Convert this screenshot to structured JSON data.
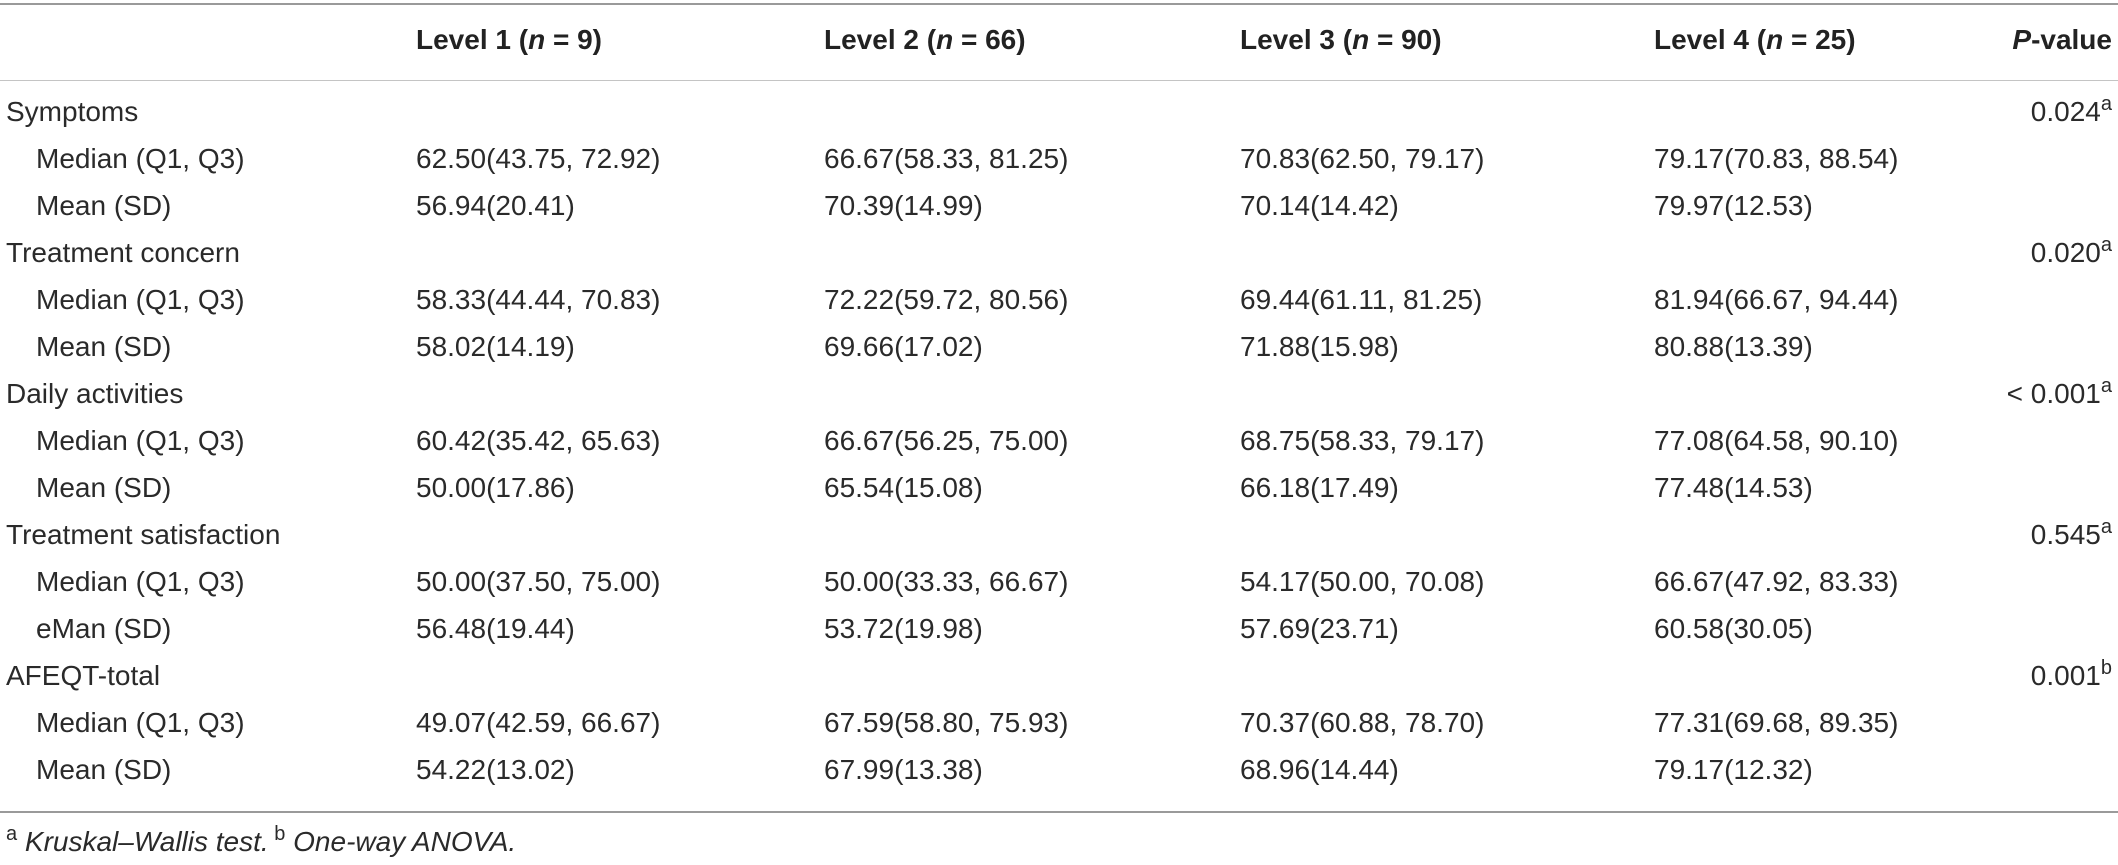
{
  "header": {
    "levels": [
      {
        "prefix": "Level 1 (",
        "n": "n",
        "eq": " = 9)"
      },
      {
        "prefix": "Level 2 (",
        "n": "n",
        "eq": " = 66)"
      },
      {
        "prefix": "Level 3 (",
        "n": "n",
        "eq": " = 90)"
      },
      {
        "prefix": "Level 4 (",
        "n": "n",
        "eq": " = 25)"
      }
    ],
    "pvalue_italic": "P",
    "pvalue_rest": "-value"
  },
  "groups": [
    {
      "name": "Symptoms",
      "p": "0.024",
      "p_sup": "a",
      "rows": [
        {
          "label": "Median (Q1, Q3)",
          "values": [
            "62.50(43.75, 72.92)",
            "66.67(58.33, 81.25)",
            "70.83(62.50, 79.17)",
            "79.17(70.83, 88.54)"
          ]
        },
        {
          "label": "Mean (SD)",
          "values": [
            "56.94(20.41)",
            "70.39(14.99)",
            "70.14(14.42)",
            "79.97(12.53)"
          ]
        }
      ]
    },
    {
      "name": "Treatment concern",
      "p": "0.020",
      "p_sup": "a",
      "rows": [
        {
          "label": "Median (Q1, Q3)",
          "values": [
            "58.33(44.44, 70.83)",
            "72.22(59.72, 80.56)",
            "69.44(61.11, 81.25)",
            "81.94(66.67, 94.44)"
          ]
        },
        {
          "label": "Mean (SD)",
          "values": [
            "58.02(14.19)",
            "69.66(17.02)",
            "71.88(15.98)",
            "80.88(13.39)"
          ]
        }
      ]
    },
    {
      "name": "Daily activities",
      "p": "< 0.001",
      "p_sup": "a",
      "rows": [
        {
          "label": "Median (Q1, Q3)",
          "values": [
            "60.42(35.42, 65.63)",
            "66.67(56.25, 75.00)",
            "68.75(58.33, 79.17)",
            "77.08(64.58, 90.10)"
          ]
        },
        {
          "label": "Mean (SD)",
          "values": [
            "50.00(17.86)",
            "65.54(15.08)",
            "66.18(17.49)",
            "77.48(14.53)"
          ]
        }
      ]
    },
    {
      "name": "Treatment satisfaction",
      "p": "0.545",
      "p_sup": "a",
      "rows": [
        {
          "label": "Median (Q1, Q3)",
          "values": [
            "50.00(37.50, 75.00)",
            "50.00(33.33, 66.67)",
            "54.17(50.00, 70.08)",
            "66.67(47.92, 83.33)"
          ]
        },
        {
          "label": "eMan (SD)",
          "values": [
            "56.48(19.44)",
            "53.72(19.98)",
            "57.69(23.71)",
            "60.58(30.05)"
          ]
        }
      ]
    },
    {
      "name": "AFEQT-total",
      "p": "0.001",
      "p_sup": "b",
      "rows": [
        {
          "label": "Median (Q1, Q3)",
          "values": [
            "49.07(42.59, 66.67)",
            "67.59(58.80, 75.93)",
            "70.37(60.88, 78.70)",
            "77.31(69.68, 89.35)"
          ]
        },
        {
          "label": "Mean (SD)",
          "values": [
            "54.22(13.02)",
            "67.99(13.38)",
            "68.96(14.44)",
            "79.17(12.32)"
          ]
        }
      ]
    }
  ],
  "footnote": {
    "a_mark": "a",
    "a_text": " Kruskal–Wallis test.",
    "b_mark": " b",
    "b_text": " One-way ANOVA."
  }
}
